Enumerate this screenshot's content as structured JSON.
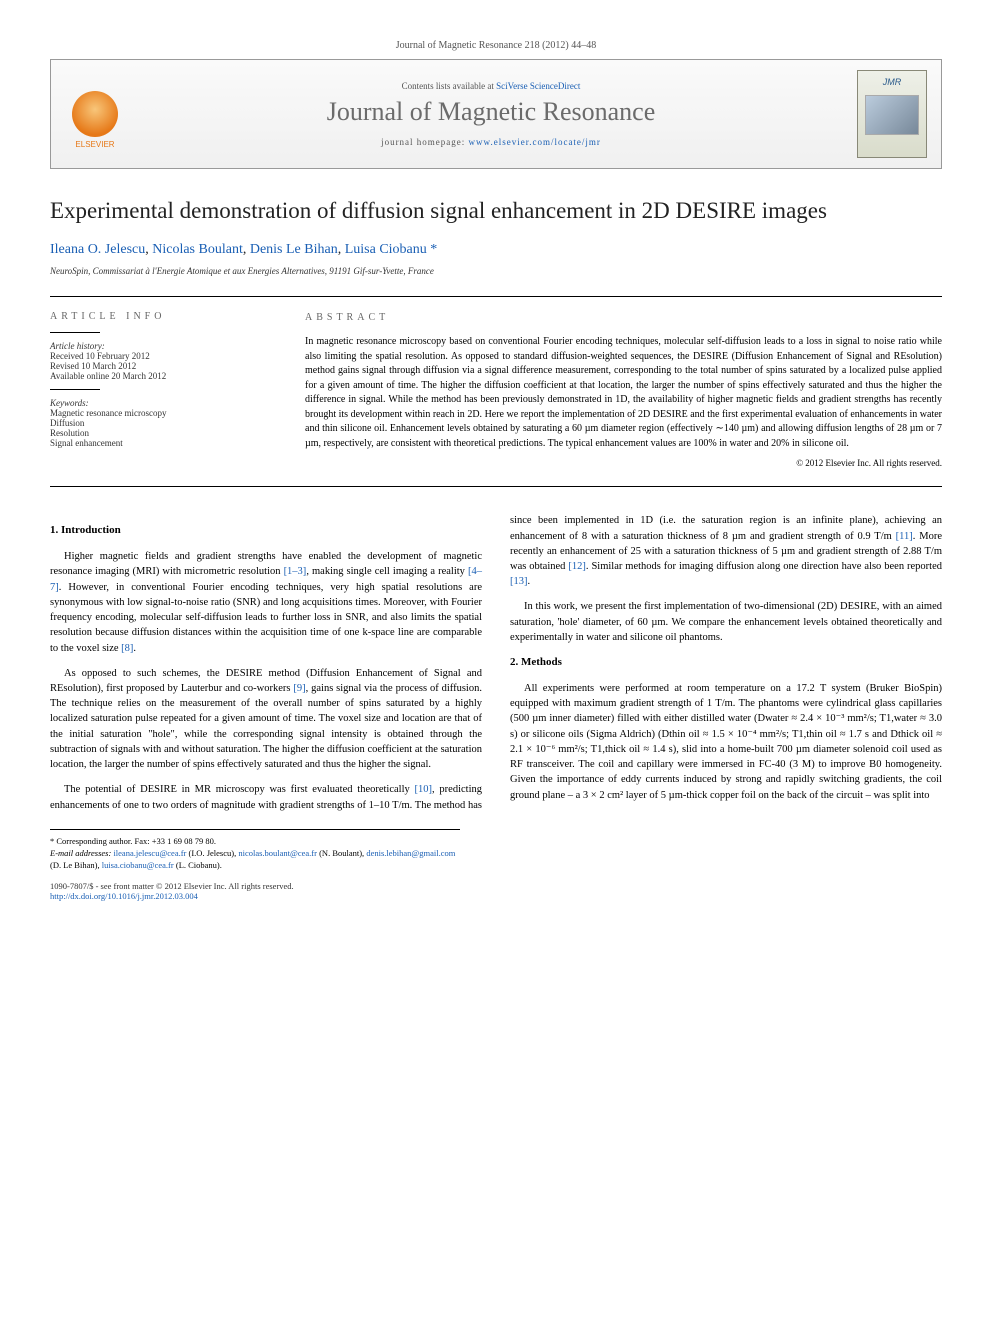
{
  "journal_ref": "Journal of Magnetic Resonance 218 (2012) 44–48",
  "header": {
    "publisher_name": "ELSEVIER",
    "contents_prefix": "Contents lists available at ",
    "contents_link": "SciVerse ScienceDirect",
    "journal_name": "Journal of Magnetic Resonance",
    "homepage_prefix": "journal homepage: ",
    "homepage_url": "www.elsevier.com/locate/jmr",
    "cover_logo": "JMR"
  },
  "title": "Experimental demonstration of diffusion signal enhancement in 2D DESIRE images",
  "authors": {
    "a1": "Ileana O. Jelescu",
    "a2": "Nicolas Boulant",
    "a3": "Denis Le Bihan",
    "a4": "Luisa Ciobanu",
    "corr": "*"
  },
  "affiliation": "NeuroSpin, Commissariat à l'Energie Atomique et aux Energies Alternatives, 91191 Gif-sur-Yvette, France",
  "info": {
    "head": "ARTICLE INFO",
    "history_label": "Article history:",
    "received": "Received 10 February 2012",
    "revised": "Revised 10 March 2012",
    "online": "Available online 20 March 2012",
    "keywords_label": "Keywords:",
    "k1": "Magnetic resonance microscopy",
    "k2": "Diffusion",
    "k3": "Resolution",
    "k4": "Signal enhancement"
  },
  "abstract": {
    "head": "ABSTRACT",
    "text": "In magnetic resonance microscopy based on conventional Fourier encoding techniques, molecular self-diffusion leads to a loss in signal to noise ratio while also limiting the spatial resolution. As opposed to standard diffusion-weighted sequences, the DESIRE (Diffusion Enhancement of Signal and REsolution) method gains signal through diffusion via a signal difference measurement, corresponding to the total number of spins saturated by a localized pulse applied for a given amount of time. The higher the diffusion coefficient at that location, the larger the number of spins effectively saturated and thus the higher the difference in signal. While the method has been previously demonstrated in 1D, the availability of higher magnetic fields and gradient strengths has recently brought its development within reach in 2D. Here we report the implementation of 2D DESIRE and the first experimental evaluation of enhancements in water and thin silicone oil. Enhancement levels obtained by saturating a 60 µm diameter region (effectively ∼140 µm) and allowing diffusion lengths of 28 µm or 7 µm, respectively, are consistent with theoretical predictions. The typical enhancement values are 100% in water and 20% in silicone oil.",
    "copyright": "© 2012 Elsevier Inc. All rights reserved."
  },
  "sections": {
    "s1_title": "1. Introduction",
    "s1_p1a": "Higher magnetic fields and gradient strengths have enabled the development of magnetic resonance imaging (MRI) with micrometric resolution ",
    "s1_p1_r1": "[1–3]",
    "s1_p1b": ", making single cell imaging a reality ",
    "s1_p1_r2": "[4–7]",
    "s1_p1c": ". However, in conventional Fourier encoding techniques, very high spatial resolutions are synonymous with low signal-to-noise ratio (SNR) and long acquisitions times. Moreover, with Fourier frequency encoding, molecular self-diffusion leads to further loss in SNR, and also limits the spatial resolution because diffusion distances within the acquisition time of one k-space line are comparable to the voxel size ",
    "s1_p1_r3": "[8]",
    "s1_p1d": ".",
    "s1_p2a": "As opposed to such schemes, the DESIRE method (Diffusion Enhancement of Signal and REsolution), first proposed by Lauterbur and co-workers ",
    "s1_p2_r1": "[9]",
    "s1_p2b": ", gains signal via the process of diffusion. The technique relies on the measurement of the overall number of spins saturated by a highly localized saturation pulse repeated for a given amount of time. The voxel size and location are that of the initial saturation \"hole\", while the corresponding signal intensity is obtained through the subtraction of signals with and without saturation. The higher the diffusion coefficient at the saturation location, the larger the number of spins effectively saturated and thus the higher the signal.",
    "s1_p3a": "The potential of DESIRE in MR microscopy was first evaluated theoretically ",
    "s1_p3_r1": "[10]",
    "s1_p3b": ", predicting enhancements of one to two orders of magnitude with gradient strengths of 1–10 T/m. The method has since been implemented in 1D (i.e. the saturation region is an infinite plane), achieving an enhancement of 8 with a saturation thickness of 8 µm and gradient strength of 0.9 T/m ",
    "s1_p3_r2": "[11]",
    "s1_p3c": ". More recently an enhancement of 25 with a saturation thickness of 5 µm and gradient strength of 2.88 T/m was obtained ",
    "s1_p3_r3": "[12]",
    "s1_p3d": ". Similar methods for imaging diffusion along one direction have also been reported ",
    "s1_p3_r4": "[13]",
    "s1_p3e": ".",
    "s1_p4": "In this work, we present the first implementation of two-dimensional (2D) DESIRE, with an aimed saturation, 'hole' diameter, of 60 µm. We compare the enhancement levels obtained theoretically and experimentally in water and silicone oil phantoms.",
    "s2_title": "2. Methods",
    "s2_p1": "All experiments were performed at room temperature on a 17.2 T system (Bruker BioSpin) equipped with maximum gradient strength of 1 T/m. The phantoms were cylindrical glass capillaries (500 µm inner diameter) filled with either distilled water (Dwater ≈ 2.4 × 10⁻³ mm²/s; T1,water ≈ 3.0 s) or silicone oils (Sigma Aldrich) (Dthin oil ≈ 1.5 × 10⁻⁴ mm²/s; T1,thin oil ≈ 1.7 s and Dthick oil ≈ 2.1 × 10⁻⁶ mm²/s; T1,thick oil ≈ 1.4 s), slid into a home-built 700 µm diameter solenoid coil used as RF transceiver. The coil and capillary were immersed in FC-40 (3 M) to improve B0 homogeneity. Given the importance of eddy currents induced by strong and rapidly switching gradients, the coil ground plane – a 3 × 2 cm² layer of 5 µm-thick copper foil on the back of the circuit – was split into"
  },
  "footnotes": {
    "corr_label": "* Corresponding author. Fax: +33 1 69 08 79 80.",
    "email_label": "E-mail addresses: ",
    "e1": "ileana.jelescu@cea.fr",
    "n1": " (I.O. Jelescu), ",
    "e2": "nicolas.boulant@cea.fr",
    "n2": " (N. Boulant), ",
    "e3": "denis.lebihan@gmail.com",
    "n3": " (D. Le Bihan), ",
    "e4": "luisa.ciobanu@cea.fr",
    "n4": " (L. Ciobanu)."
  },
  "doi": {
    "front": "1090-7807/$ - see front matter © 2012 Elsevier Inc. All rights reserved.",
    "link": "http://dx.doi.org/10.1016/j.jmr.2012.03.004"
  }
}
